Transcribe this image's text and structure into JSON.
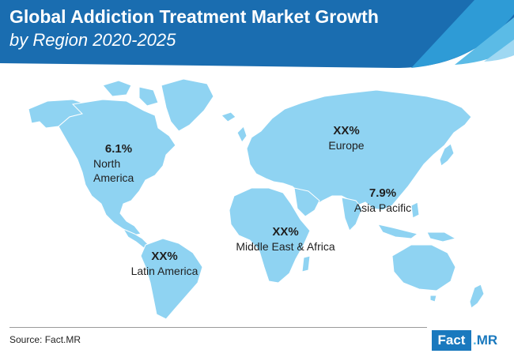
{
  "header": {
    "title": "Global Addiction Treatment Market Growth",
    "subtitle": "by Region 2020-2025"
  },
  "colors": {
    "header_blue": "#1a6db0",
    "accent_light_blue": "#5bbbe6",
    "land": "#8fd3f2"
  },
  "regions": {
    "north_america": {
      "value": "6.1%",
      "name_line1": "North",
      "name_line2": "America"
    },
    "europe": {
      "value": "XX%",
      "name": "Europe"
    },
    "asia_pacific": {
      "value": "7.9%",
      "name": "Asia Pacific"
    },
    "middle_east_africa": {
      "value": "XX%",
      "name": "Middle East & Africa"
    },
    "latin_america": {
      "value": "XX%",
      "name": "Latin America"
    }
  },
  "footer": {
    "source": "Source: Fact.MR",
    "logo_box": "Fact",
    "logo_dot": ".",
    "logo_tail": "MR"
  }
}
